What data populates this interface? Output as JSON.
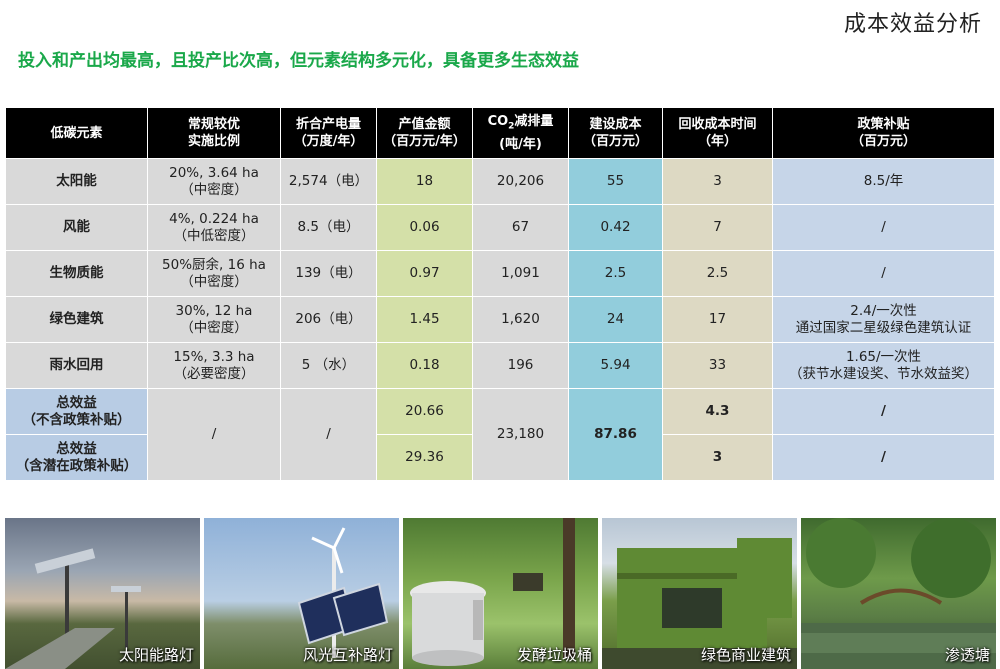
{
  "header": {
    "title": "成本效益分析",
    "subtitle": "投入和产出均最高，且投产比次高，但元素结构多元化，具备更多生态效益"
  },
  "table": {
    "headers": {
      "element": "低碳元素",
      "ratio_l1": "常规较优",
      "ratio_l2": "实施比例",
      "power_l1": "折合产电量",
      "power_l2": "（万度/年）",
      "value_l1": "产值金额",
      "value_l2": "（百万元/年）",
      "co2_pre": "CO",
      "co2_sub": "2",
      "co2_post": "减排量",
      "co2_l2": "(吨/年)",
      "cost_l1": "建设成本",
      "cost_l2": "（百万元）",
      "payback_l1": "回收成本时间",
      "payback_l2": "（年）",
      "subsidy_l1": "政策补贴",
      "subsidy_l2": "（百万元）"
    },
    "rows": [
      {
        "element": "太阳能",
        "ratio_l1": "20%, 3.64 ha",
        "ratio_l2": "（中密度）",
        "power": "2,574（电）",
        "value": "18",
        "co2": "20,206",
        "cost": "55",
        "payback": "3",
        "subsidy_l1": "8.5/年",
        "subsidy_l2": ""
      },
      {
        "element": "风能",
        "ratio_l1": "4%, 0.224 ha",
        "ratio_l2": "（中低密度）",
        "power": "8.5（电）",
        "value": "0.06",
        "co2": "67",
        "cost": "0.42",
        "payback": "7",
        "subsidy_l1": "/",
        "subsidy_l2": ""
      },
      {
        "element": "生物质能",
        "ratio_l1": "50%厨余, 16 ha",
        "ratio_l2": "（中密度）",
        "power": "139（电）",
        "value": "0.97",
        "co2": "1,091",
        "cost": "2.5",
        "payback": "2.5",
        "subsidy_l1": "/",
        "subsidy_l2": ""
      },
      {
        "element": "绿色建筑",
        "ratio_l1": "30%, 12 ha",
        "ratio_l2": "（中密度）",
        "power": "206（电）",
        "value": "1.45",
        "co2": "1,620",
        "cost": "24",
        "payback": "17",
        "subsidy_l1": "2.4/一次性",
        "subsidy_l2": "通过国家二星级绿色建筑认证"
      },
      {
        "element": "雨水回用",
        "ratio_l1": "15%, 3.3 ha",
        "ratio_l2": "（必要密度）",
        "power": "5 （水）",
        "value": "0.18",
        "co2": "196",
        "cost": "5.94",
        "payback": "33",
        "subsidy_l1": "1.65/一次性",
        "subsidy_l2": "（获节水建设奖、节水效益奖）"
      }
    ],
    "totals": {
      "row1_label_l1": "总效益",
      "row1_label_l2": "（不含政策补贴）",
      "row2_label_l1": "总效益",
      "row2_label_l2": "（含潜在政策补贴）",
      "ratio": "/",
      "power": "/",
      "value1": "20.66",
      "value2": "29.36",
      "co2": "23,180",
      "cost": "87.86",
      "payback1": "4.3",
      "payback2": "3",
      "subsidy1": "/",
      "subsidy2": "/"
    }
  },
  "photos": [
    {
      "caption": "太阳能路灯"
    },
    {
      "caption": "风光互补路灯"
    },
    {
      "caption": "发酵垃圾桶"
    },
    {
      "caption": "绿色商业建筑"
    },
    {
      "caption": "渗透塘"
    }
  ]
}
